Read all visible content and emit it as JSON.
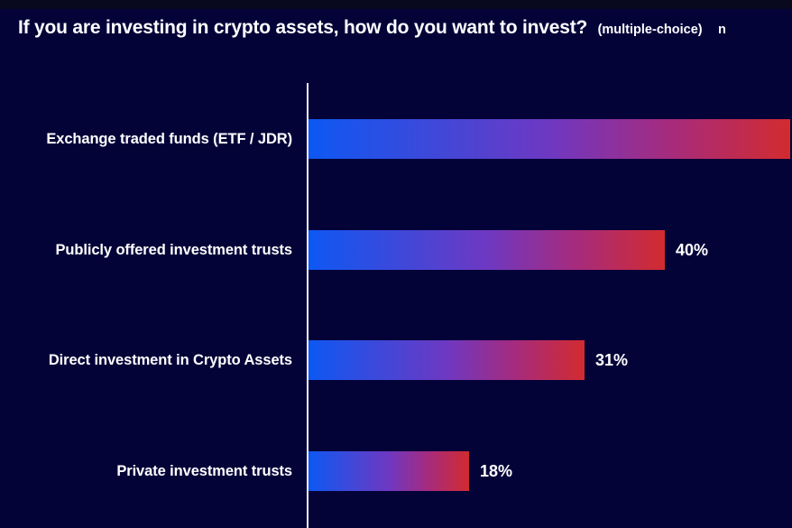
{
  "page": {
    "background": "#040338",
    "top_strip_color": "#08081e",
    "text_color": "#ffffff",
    "axis_color": "#eef0f8"
  },
  "title": {
    "main": "If you are investing in crypto assets, how do you want to invest?",
    "suffix": "(multiple-choice)",
    "sample_note": "n"
  },
  "chart_data": {
    "type": "bar",
    "orientation": "horizontal",
    "title": "If you are investing in crypto assets, how do you want to invest? (multiple-choice)",
    "categories": [
      "Exchange traded funds (ETF / JDR)",
      "Publicly offered investment trusts",
      "Direct investment in Crypto Assets",
      "Private investment trusts"
    ],
    "values": [
      54,
      40,
      31,
      18
    ],
    "value_labels": [
      "",
      "40%",
      "31%",
      "18%"
    ],
    "xlim": [
      0,
      54
    ],
    "grid": false,
    "legend": false,
    "first_bar_clipped_at_right_edge": true,
    "bar_gradient": [
      "#0d58f3",
      "#3d49da",
      "#6e38c2",
      "#a62b7d",
      "#d22b2f"
    ]
  }
}
